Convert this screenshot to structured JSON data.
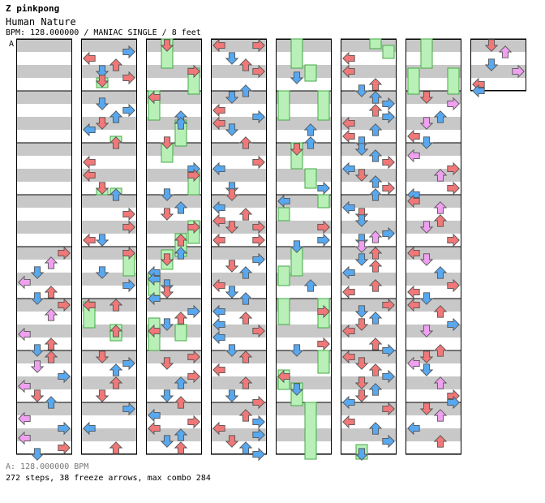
{
  "header": {
    "title": "Z pinkpong",
    "song": "Human Nature",
    "info": "BPM: 128.000000 / MANIAC SINGLE / 8 feet"
  },
  "chart_data": {
    "type": "dance-chart",
    "columns": 8,
    "measures_per_column": 8,
    "stop_marker": "A",
    "colors": {
      "row_stripe": "#c8c8c8",
      "quarter_note": "#f07878",
      "eighth_note": "#58a8f0",
      "sixteenth_note": "#f0a0f0",
      "freeze": "#b8f0b8",
      "freeze_border": "#44aa44"
    }
  },
  "footer": {
    "bpm_line": "A: 128.000000 BPM",
    "stats_line": "272 steps, 38 freeze arrows, max combo 284"
  }
}
